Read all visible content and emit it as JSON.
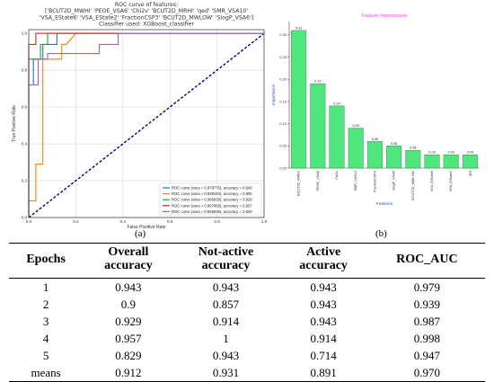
{
  "chart_data": [
    {
      "type": "line",
      "title_lines": [
        "ROC curve of features:",
        "['BCUT2D_MWHI' 'PEOE_VSA6' 'Chi2v' 'BCUT2D_MRHI' 'qed' 'SMR_VSA10'",
        "'VSA_EState6' 'VSA_EState2' 'FractionCSP3' 'BCUT2D_MWLOW' 'SlogP_VSA6']",
        "Classifier used: XGBoost_classifier"
      ],
      "xlabel": "False Positive Rate",
      "ylabel": "True Positive Rate",
      "xlim": [
        0,
        1
      ],
      "ylim": [
        0,
        1.02
      ],
      "x_ticks": [
        0.0,
        0.2,
        0.4,
        0.6,
        0.8,
        1.0
      ],
      "y_ticks": [
        0.0,
        0.2,
        0.4,
        0.6,
        0.8,
        1.0
      ],
      "grid": true,
      "legend_position": "bottom-right",
      "series": [
        {
          "name": "ROC curve (area = 0.978776), accuracy = 0.943",
          "color": "#1f77b4",
          "points": [
            [
              0,
              0
            ],
            [
              0,
              0.72
            ],
            [
              0.02,
              0.72
            ],
            [
              0.02,
              0.86
            ],
            [
              0.06,
              0.86
            ],
            [
              0.06,
              0.94
            ],
            [
              0.12,
              0.94
            ],
            [
              0.12,
              1.0
            ],
            [
              1,
              1.0
            ]
          ]
        },
        {
          "name": "ROC curve (area = 0.939184), accuracy = 0.900",
          "color": "#ff7f0e",
          "points": [
            [
              0,
              0
            ],
            [
              0,
              0.09
            ],
            [
              0.03,
              0.09
            ],
            [
              0.03,
              0.29
            ],
            [
              0.06,
              0.29
            ],
            [
              0.06,
              0.86
            ],
            [
              0.14,
              0.86
            ],
            [
              0.14,
              0.94
            ],
            [
              0.16,
              0.94
            ],
            [
              0.2,
              1.0
            ],
            [
              1,
              1.0
            ]
          ]
        },
        {
          "name": "ROC curve (area = 0.986939), accuracy = 0.929",
          "color": "#2ca02c",
          "points": [
            [
              0,
              0
            ],
            [
              0,
              0.86
            ],
            [
              0.05,
              0.86
            ],
            [
              0.05,
              0.94
            ],
            [
              0.08,
              0.94
            ],
            [
              0.08,
              1.0
            ],
            [
              1,
              1.0
            ]
          ]
        },
        {
          "name": "ROC curve (area = 0.997959), accuracy = 0.957",
          "color": "#d62728",
          "points": [
            [
              0,
              0
            ],
            [
              0,
              0.94
            ],
            [
              0.03,
              0.94
            ],
            [
              0.03,
              1.0
            ],
            [
              1,
              1.0
            ]
          ]
        },
        {
          "name": "ROC curve (area = 0.946939), accuracy = 0.829",
          "color": "#9467bd",
          "points": [
            [
              0,
              0
            ],
            [
              0,
              0.72
            ],
            [
              0.04,
              0.72
            ],
            [
              0.04,
              0.86
            ],
            [
              0.08,
              0.86
            ],
            [
              0.08,
              0.89
            ],
            [
              0.3,
              0.89
            ],
            [
              0.3,
              0.94
            ],
            [
              0.38,
              0.94
            ],
            [
              0.38,
              1.0
            ],
            [
              1,
              1.0
            ]
          ]
        }
      ],
      "diagonal": {
        "color": "#00008b",
        "style": "dashed"
      }
    },
    {
      "type": "bar",
      "title": "Feature Importances",
      "xlabel": "Features",
      "ylabel": "Importance",
      "ylim": [
        0,
        0.33
      ],
      "y_ticks": [
        0.0,
        0.05,
        0.1,
        0.15,
        0.2,
        0.25,
        0.3
      ],
      "bar_color": "#50e67e",
      "title_color": "#ff40ff",
      "axis_label_color": "#1f4fd6",
      "categories": [
        "BCUT2D_MWHI",
        "PEOE_VSA6",
        "Chi2v",
        "SMR_VSA10",
        "FractionCSP3",
        "SlogP_VSA6",
        "BCUT2D_MWLOW",
        "VSA_EState6",
        "VSA_EState2",
        "qed"
      ],
      "values": [
        0.31,
        0.19,
        0.14,
        0.09,
        0.06,
        0.05,
        0.04,
        0.03,
        0.03,
        0.03
      ],
      "data_labels": [
        "0.31",
        "0.19",
        "0.14",
        "0.09",
        "0.06",
        "0.05",
        "0.04",
        "0.03",
        "0.03",
        "0.03"
      ]
    }
  ],
  "panels": {
    "a": "(a)",
    "b": "(b)"
  },
  "table": {
    "headers": [
      [
        "Epochs"
      ],
      [
        "Overall",
        "accuracy"
      ],
      [
        "Not-active",
        "accuracy"
      ],
      [
        "Active",
        "accuracy"
      ],
      [
        "ROC_AUC"
      ]
    ],
    "rows": [
      [
        "1",
        "0.943",
        "0.943",
        "0.943",
        "0.979"
      ],
      [
        "2",
        "0.9",
        "0.857",
        "0.943",
        "0.939"
      ],
      [
        "3",
        "0.929",
        "0.914",
        "0.943",
        "0.987"
      ],
      [
        "4",
        "0.957",
        "1",
        "0.914",
        "0.998"
      ],
      [
        "5",
        "0.829",
        "0.943",
        "0.714",
        "0.947"
      ],
      [
        "means",
        "0.912",
        "0.931",
        "0.891",
        "0.970"
      ]
    ]
  }
}
